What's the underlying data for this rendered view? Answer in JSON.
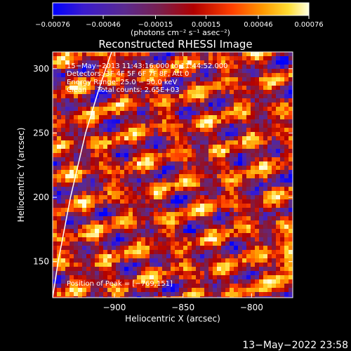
{
  "chart_data": {
    "type": "heatmap",
    "title": "Reconstructed RHESSI Image",
    "xlabel": "Heliocentric X (arcsec)",
    "ylabel": "Heliocentric Y (arcsec)",
    "xlim": [
      -945,
      -770
    ],
    "ylim": [
      122,
      313
    ],
    "x_ticks": [
      -900,
      -850,
      -800
    ],
    "x_tick_labels": [
      "−900",
      "−850",
      "−800"
    ],
    "y_ticks": [
      150,
      200,
      250,
      300
    ],
    "y_tick_labels": [
      "150",
      "200",
      "250",
      "300"
    ],
    "colorbar": {
      "min": -0.00076,
      "max": 0.00076,
      "ticks": [
        -0.00076,
        -0.00046,
        -0.00015,
        0.00015,
        0.00046,
        0.00076
      ],
      "tick_labels": [
        "−0.00076",
        "−0.00046",
        "−0.00015",
        "0.00015",
        "0.00046",
        "0.00076"
      ],
      "units_label": "(photons cm⁻² s⁻¹ asec⁻²)",
      "colors": [
        "#0000ff",
        "#3a1bcf",
        "#5a2a90",
        "#7a1f4c",
        "#b00000",
        "#ff4000",
        "#ff9900",
        "#ffdd33",
        "#ffffe0"
      ]
    },
    "annotations": [
      "15−May−2013 11:43:16.000 to 11:44:52.000",
      "Detectors: 3F 4F 5F 6F 7F 8F, Att 0",
      "Energy Range: 25.0 − 50.0 keV",
      "Clean     Total counts: 2.65E+03"
    ],
    "peak_label": "Position of Peak = [−769,151]",
    "peak": [
      -769,
      151
    ],
    "limb_curve": {
      "x": [
        -945,
        -941,
        -932,
        -921,
        -911,
        -902
      ],
      "y": [
        122,
        150,
        200,
        250,
        285,
        313
      ]
    },
    "grid": false
  },
  "footer_timestamp": "13−May−2022 23:58"
}
